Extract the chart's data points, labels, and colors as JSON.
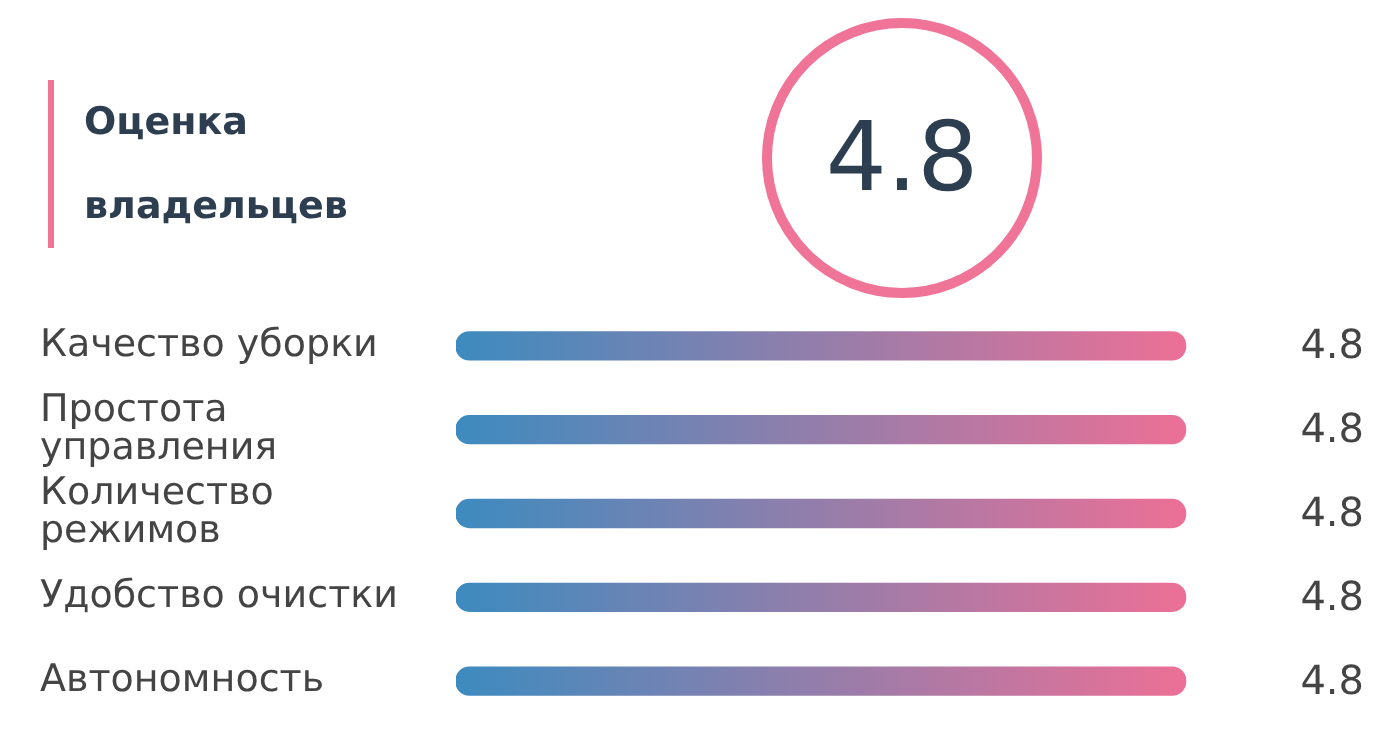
{
  "chart_data": {
    "type": "bar",
    "orientation": "horizontal",
    "title": "Оценка владельцев",
    "annotations": [
      "4.8"
    ],
    "categories": [
      "Качество уборки",
      "Простота управления",
      "Количество режимов",
      "Удобство очистки",
      "Автономность"
    ],
    "values": [
      4.8,
      4.8,
      4.8,
      4.8,
      4.8
    ],
    "color": "#3d8bbf",
    "data_labels": true,
    "legend": false
  }
}
